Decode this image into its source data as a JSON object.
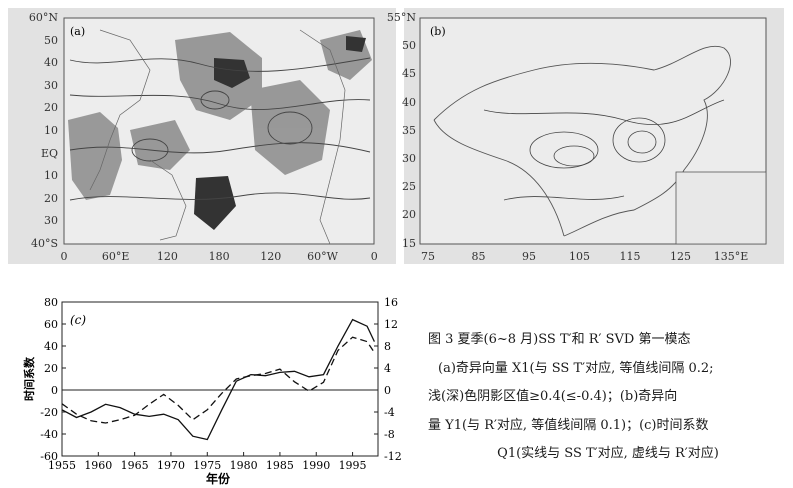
{
  "map_a": {
    "panel_label": "(a)",
    "lat_labels": [
      "60°N",
      "50",
      "40",
      "30",
      "20",
      "10",
      "EQ",
      "10",
      "20",
      "30",
      "40°S"
    ],
    "lon_labels": [
      "0",
      "60°E",
      "120",
      "180",
      "120",
      "60°W",
      "0"
    ]
  },
  "map_b": {
    "panel_label": "(b)",
    "lat_labels": [
      "55°N",
      "50",
      "45",
      "40",
      "35",
      "30",
      "25",
      "20",
      "15"
    ],
    "lon_labels": [
      "75",
      "85",
      "95",
      "105",
      "115",
      "125",
      "135°E"
    ]
  },
  "chart_data": {
    "type": "line",
    "panel_label": "(c)",
    "x": [
      1955,
      1957,
      1959,
      1961,
      1963,
      1965,
      1967,
      1969,
      1971,
      1973,
      1975,
      1977,
      1979,
      1981,
      1983,
      1985,
      1987,
      1989,
      1991,
      1993,
      1995,
      1997,
      1998
    ],
    "series": [
      {
        "style": "solid",
        "axis": "left",
        "values": [
          -18,
          -25,
          -20,
          -13,
          -16,
          -22,
          -24,
          -22,
          -27,
          -42,
          -45,
          -18,
          8,
          14,
          13,
          16,
          17,
          12,
          14,
          40,
          64,
          58,
          44
        ]
      },
      {
        "style": "dashed",
        "axis": "right",
        "values": [
          -2.5,
          -4.4,
          -5.6,
          -6.0,
          -5.4,
          -4.6,
          -2.6,
          -0.8,
          -2.8,
          -5.4,
          -3.6,
          -0.6,
          2.0,
          2.6,
          3.0,
          3.8,
          1.5,
          -0.2,
          1.4,
          7.2,
          9.6,
          8.8,
          6.8
        ]
      }
    ],
    "xlabel": "年份",
    "ylabel": "时间系数",
    "xticks": [
      1955,
      1960,
      1965,
      1970,
      1975,
      1980,
      1985,
      1990,
      1995
    ],
    "ylim_left": [
      -60,
      80
    ],
    "yticks_left": [
      80,
      60,
      40,
      20,
      0,
      -20,
      -40,
      -60
    ],
    "ylim_right": [
      -12,
      16
    ],
    "yticks_right": [
      16,
      12,
      8,
      4,
      0,
      -4,
      -8,
      -12
    ],
    "grid": false
  },
  "caption": {
    "line1": "图 3 夏季(6~8 月)SS T′和 R′ SVD 第一模态",
    "line2": "(a)奇异向量 X1(与 SS T′对应, 等值线间隔 0.2;",
    "line3": "浅(深)色阴影区值≥0.4(≤-0.4)；(b)奇异向",
    "line4": "量 Y1(与 R′对应, 等值线间隔 0.1)；(c)时间系数",
    "line5": "Q1(实线与 SS T′对应, 虚线与 R′对应)"
  }
}
